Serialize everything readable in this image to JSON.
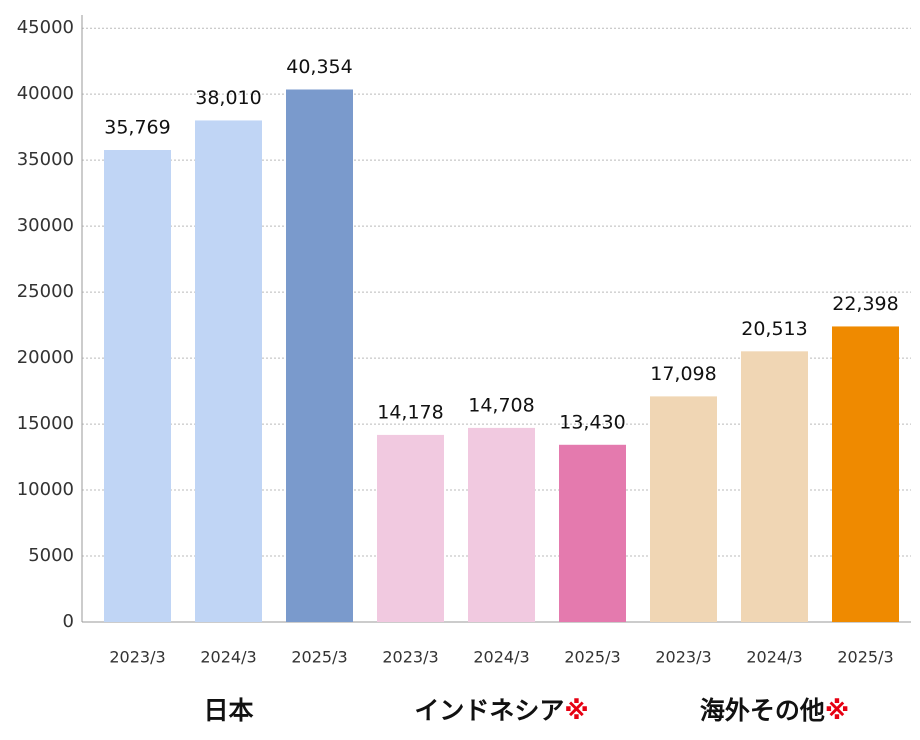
{
  "chart_data": {
    "type": "bar",
    "categories": [
      "2023/3",
      "2024/3",
      "2025/3",
      "2023/3",
      "2024/3",
      "2025/3",
      "2023/3",
      "2024/3",
      "2025/3"
    ],
    "values": [
      35769,
      38010,
      40354,
      14178,
      14708,
      13430,
      17098,
      20513,
      22398
    ],
    "value_labels": [
      "35,769",
      "38,010",
      "40,354",
      "14,178",
      "14,708",
      "13,430",
      "17,098",
      "20,513",
      "22,398"
    ],
    "colors": [
      "#c0d5f5",
      "#c0d5f5",
      "#7a9acc",
      "#f1c9e0",
      "#f1c9e0",
      "#e47aae",
      "#f0d6b4",
      "#f0d6b4",
      "#ef8a00"
    ],
    "groups": [
      {
        "label": "日本"
      },
      {
        "label": "インドネシア",
        "mark": "※"
      },
      {
        "label": "海外その他",
        "mark": "※"
      }
    ],
    "ylim": [
      0,
      46000
    ],
    "yticks": [
      0,
      5000,
      10000,
      15000,
      20000,
      25000,
      30000,
      35000,
      40000,
      45000
    ],
    "grid": true
  }
}
